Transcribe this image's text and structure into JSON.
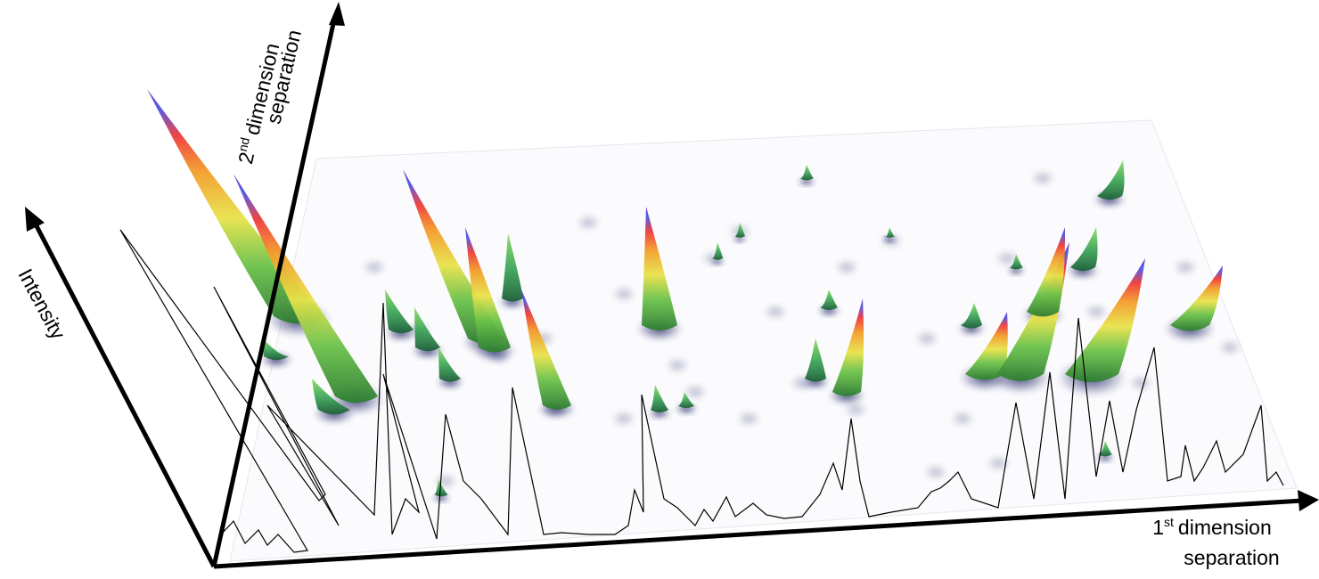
{
  "axes": {
    "intensity": {
      "label": "Intensity"
    },
    "second_dimension": {
      "number": "2",
      "suffix": "nd",
      "word": "dimension",
      "line2": "separation"
    },
    "first_dimension": {
      "number": "1",
      "suffix": "st",
      "word": "dimension",
      "line2": "separation"
    }
  }
}
